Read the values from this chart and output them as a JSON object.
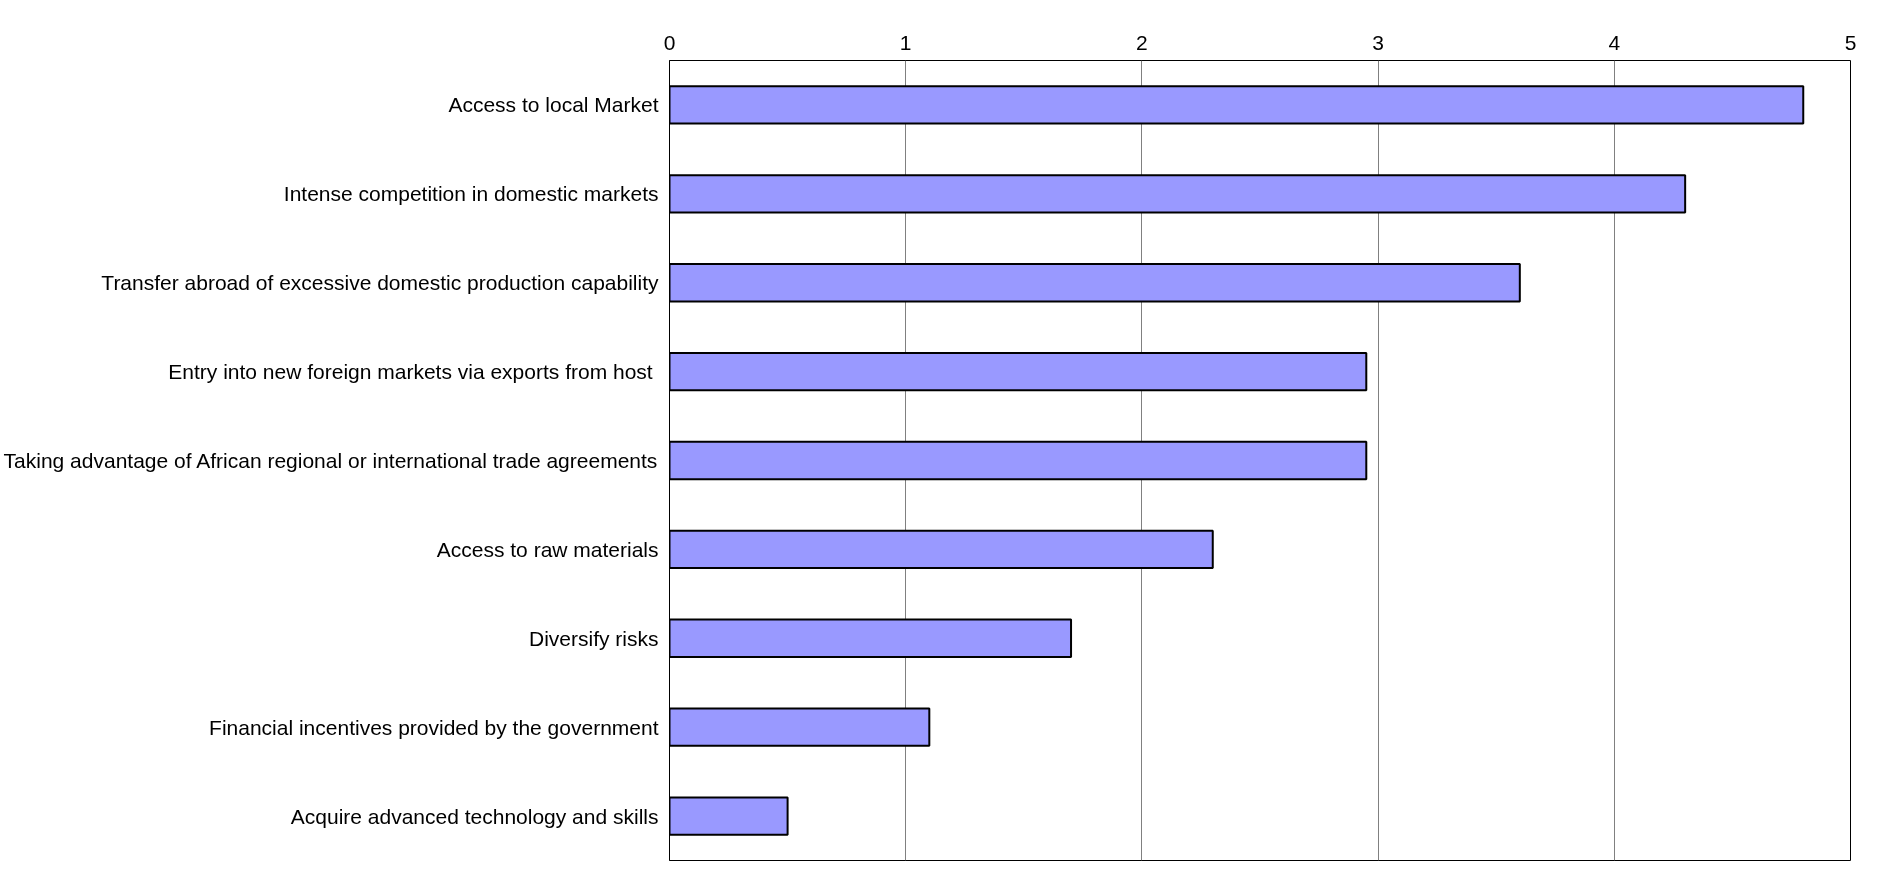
{
  "chart_data": {
    "type": "bar",
    "orientation": "horizontal",
    "categories": [
      "Access to local Market",
      "Intense competition in domestic markets",
      "Transfer abroad of excessive domestic production capability",
      "Entry into new  foreign markets via exports from host",
      "Taking advantage of African regional or international trade agreements",
      "Access to raw materials",
      "Diversify risks",
      "Financial incentives provided by the government",
      "Acquire advanced technology and skills"
    ],
    "values": [
      4.8,
      4.3,
      3.6,
      2.95,
      2.95,
      2.3,
      1.7,
      1.1,
      0.5
    ],
    "color": "#9999ff",
    "xlim": [
      0,
      5
    ],
    "xticks": [
      0,
      1,
      2,
      3,
      4,
      5
    ],
    "grid": "x"
  }
}
